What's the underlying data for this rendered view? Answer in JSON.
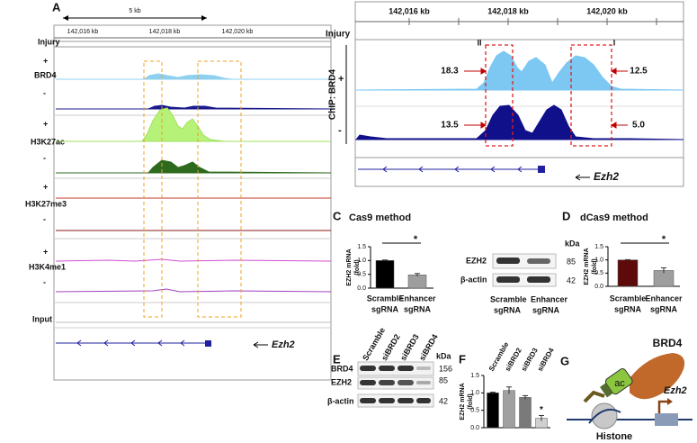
{
  "panel_a": {
    "label": "A",
    "scale": "5 kb",
    "coordinates": [
      "142,016 kb",
      "142,018 kb",
      "142,020 kb"
    ],
    "injury": "Injury",
    "tracks": [
      {
        "name": "BRD4",
        "conditions": [
          "+",
          "-"
        ]
      },
      {
        "name": "H3K27ac",
        "conditions": [
          "+",
          "-"
        ]
      },
      {
        "name": "H3K27me3",
        "conditions": [
          "+",
          "-"
        ]
      },
      {
        "name": "H3K4me1",
        "conditions": [
          "+",
          "-"
        ]
      }
    ],
    "input": "Input",
    "gene": "Ezh2"
  },
  "panel_b": {
    "label": "B",
    "coordinates": [
      "142,016 kb",
      "142,018 kb",
      "142,020 kb"
    ],
    "injury": "Injury",
    "ylabel": "ChIP: BRD4",
    "conditions": [
      "+",
      "-"
    ],
    "regions": [
      "II",
      "I"
    ],
    "annotations": [
      "18.3",
      "12.5",
      "13.5",
      "5.0"
    ],
    "gene": "Ezh2"
  },
  "panel_c": {
    "label": "C",
    "title": "Cas9 method",
    "chart": {
      "type": "bar",
      "ylabel": [
        "EZH2 mRNA",
        "(fold)"
      ],
      "categories": [
        [
          "Scramble",
          "sgRNA"
        ],
        [
          "Enhancer",
          "sgRNA"
        ]
      ],
      "values": [
        1.0,
        0.48
      ],
      "errors": [
        0.02,
        0.05
      ],
      "colors": [
        "#000000",
        "#9e9e9e"
      ],
      "ylim": [
        0,
        1.5
      ],
      "yticks": [
        {
          "value": 0,
          "label": "0.0"
        },
        {
          "value": 0.5,
          "label": "0.5"
        },
        {
          "value": 1,
          "label": "1.0"
        },
        {
          "value": 1.5,
          "label": "1.5"
        }
      ],
      "significance": "*"
    },
    "blot": {
      "unit": "kDa",
      "rows": [
        {
          "name": "EZH2",
          "kda": "85"
        },
        {
          "name": "β-actin",
          "kda": "42"
        }
      ],
      "lanes": [
        [
          "Scramble",
          "sgRNA"
        ],
        [
          "Enhancer",
          "sgRNA"
        ]
      ]
    }
  },
  "panel_d": {
    "label": "D",
    "title": "dCas9 method",
    "chart": {
      "type": "bar",
      "ylabel": [
        "EZH2 mRNA",
        "(fold)"
      ],
      "categories": [
        [
          "Scramble",
          "sgRNA"
        ],
        [
          "Enhancer",
          "sgRNA"
        ]
      ],
      "values": [
        1.0,
        0.6
      ],
      "errors": [
        0.01,
        0.1
      ],
      "colors": [
        "#5c0a0a",
        "#9e9e9e"
      ],
      "ylim": [
        0,
        1.5
      ],
      "yticks": [
        {
          "value": 0,
          "label": "0.0"
        },
        {
          "value": 0.5,
          "label": "0.5"
        },
        {
          "value": 1,
          "label": "1.0"
        },
        {
          "value": 1.5,
          "label": "1.5"
        }
      ],
      "significance": "*"
    }
  },
  "panel_e": {
    "label": "E",
    "lanes": [
      "Scramble",
      "siBRD2",
      "siBRD3",
      "siBRD4"
    ],
    "unit": "kDa",
    "rows": [
      {
        "name": "BRD4",
        "kda": "156"
      },
      {
        "name": "EZH2",
        "kda": "85"
      },
      {
        "name": "β-actin",
        "kda": "42"
      }
    ]
  },
  "panel_f": {
    "label": "F",
    "chart": {
      "type": "bar",
      "ylabel": [
        "EZH2 mRNA",
        "(fold)"
      ],
      "categories": [
        "Scramble",
        "siBRD2",
        "siBRD3",
        "siBRD4"
      ],
      "values": [
        1.0,
        1.07,
        0.87,
        0.27
      ],
      "errors": [
        0.02,
        0.1,
        0.05,
        0.08
      ],
      "colors": [
        "#000000",
        "#a0a0a0",
        "#7a7a7a",
        "#d0d0d0"
      ],
      "ylim": [
        0,
        1.5
      ],
      "yticks": [
        {
          "value": 0,
          "label": "0.0"
        },
        {
          "value": 0.5,
          "label": "0.5"
        },
        {
          "value": 1,
          "label": "1.0"
        },
        {
          "value": 1.5,
          "label": "1.5"
        }
      ],
      "significance": "*"
    }
  },
  "panel_g": {
    "label": "G",
    "protein": "BRD4",
    "mark": "ac",
    "gene": "Ezh2",
    "histone": "Histone"
  }
}
